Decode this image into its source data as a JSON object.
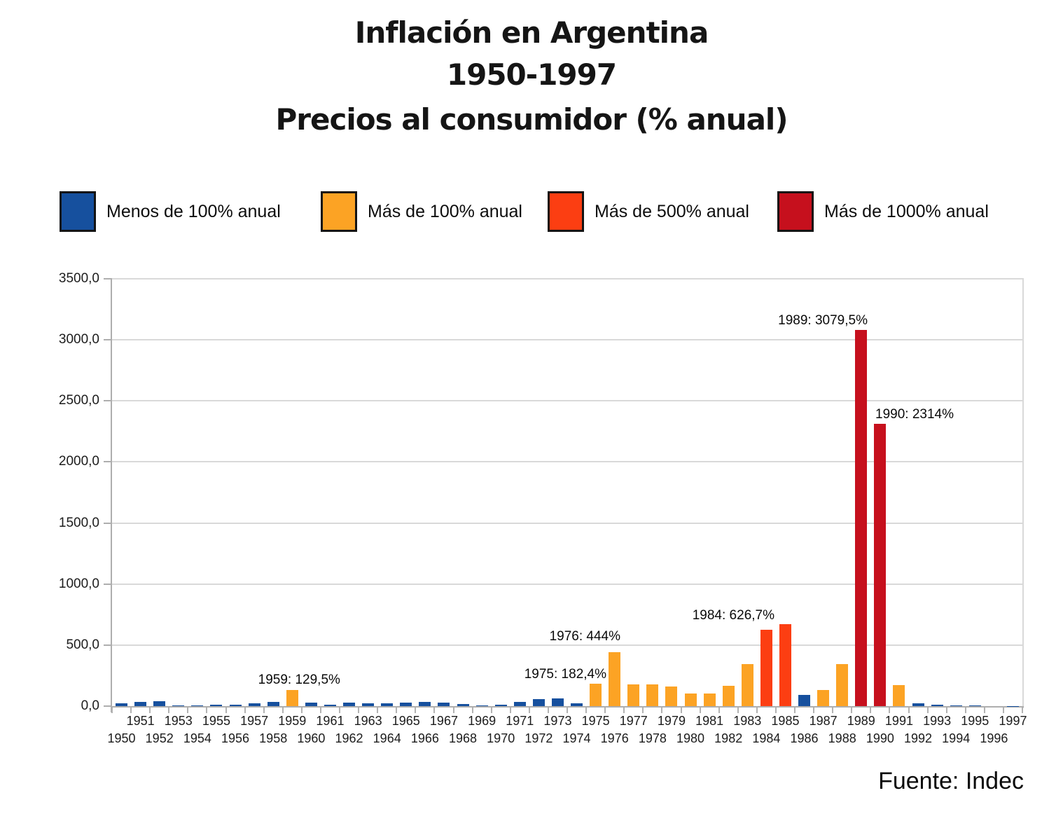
{
  "title": {
    "line1": "Inflación en Argentina",
    "line2": "1950-1997",
    "line3": "Precios al consumidor (% anual)"
  },
  "legend": [
    {
      "label": "Menos de 100% anual",
      "color": "#16509e"
    },
    {
      "label": "Más de 100% anual",
      "color": "#fca324"
    },
    {
      "label": "Más de 500% anual",
      "color": "#fc3e12"
    },
    {
      "label": "Más de 1000% anual",
      "color": "#c6101d"
    }
  ],
  "source": "Fuente: Indec",
  "chart_data": {
    "type": "bar",
    "title": "Inflación en Argentina 1950-1997 Precios al consumidor (% anual)",
    "xlabel": "",
    "ylabel": "",
    "ylim": [
      0,
      3500
    ],
    "ytick_step": 500,
    "ytick_labels": [
      "0,0",
      "500,0",
      "1000,0",
      "1500,0",
      "2000,0",
      "2500,0",
      "3000,0",
      "3500,0"
    ],
    "grid": true,
    "legend_position": "top",
    "categories": [
      1950,
      1951,
      1952,
      1953,
      1954,
      1955,
      1956,
      1957,
      1958,
      1959,
      1960,
      1961,
      1962,
      1963,
      1964,
      1965,
      1966,
      1967,
      1968,
      1969,
      1970,
      1971,
      1972,
      1973,
      1974,
      1975,
      1976,
      1977,
      1978,
      1979,
      1980,
      1981,
      1982,
      1983,
      1984,
      1985,
      1986,
      1987,
      1988,
      1989,
      1990,
      1991,
      1992,
      1993,
      1994,
      1995,
      1996,
      1997
    ],
    "values": [
      25.5,
      36.7,
      38.7,
      4.0,
      3.8,
      12.3,
      13.4,
      24.7,
      31.6,
      129.5,
      27.3,
      13.5,
      28.1,
      24.0,
      22.2,
      28.6,
      31.9,
      29.2,
      16.2,
      7.6,
      13.6,
      34.7,
      58.5,
      61.2,
      23.5,
      182.4,
      444.0,
      176.0,
      175.5,
      159.5,
      100.8,
      104.5,
      164.8,
      343.8,
      626.7,
      672.2,
      90.1,
      131.3,
      343.0,
      3079.5,
      2314.0,
      171.7,
      24.9,
      10.6,
      4.2,
      3.4,
      0.2,
      0.5
    ],
    "color_rules": [
      {
        "min": 0,
        "color": "#16509e",
        "meaning": "Menos de 100% anual"
      },
      {
        "min": 100,
        "color": "#fca324",
        "meaning": "Más de 100% anual"
      },
      {
        "min": 500,
        "color": "#fc3e12",
        "meaning": "Más de 500% anual"
      },
      {
        "min": 1000,
        "color": "#c6101d",
        "meaning": "Más de 1000% anual"
      }
    ],
    "annotations": [
      {
        "year": 1959,
        "label": "1959: 129,5%"
      },
      {
        "year": 1975,
        "label": "1975: 182,4%"
      },
      {
        "year": 1976,
        "label": "1976: 444%"
      },
      {
        "year": 1984,
        "label": "1984: 626,7%"
      },
      {
        "year": 1989,
        "label": "1989: 3079,5%"
      },
      {
        "year": 1990,
        "label": "1990: 2314%"
      }
    ]
  }
}
